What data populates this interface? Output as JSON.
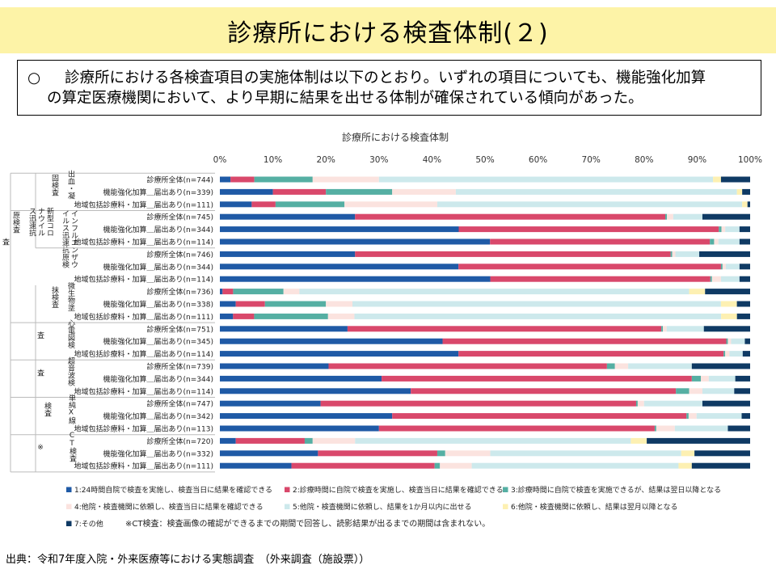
{
  "header": {
    "title": "診療所における検査体制(２)"
  },
  "summary": {
    "bullet": "○",
    "line1": "診療所における各検査項目の実施体制は以下のとおり。いずれの項目についても、機能強化加算",
    "line2": "の算定医療機関において、より早期に結果を出せる体制が確保されている傾向があった。"
  },
  "source": "出典：令和7年度入院・外来医療等における実態調査　（外来調査（施設票））",
  "chart_data": {
    "type": "bar",
    "orientation": "horizontal",
    "stacked": true,
    "title": "診療所における検査体制",
    "xlim": [
      0,
      100
    ],
    "x_ticks": [
      "0%",
      "10%",
      "20%",
      "30%",
      "40%",
      "50%",
      "60%",
      "70%",
      "80%",
      "90%",
      "100%"
    ],
    "grid": false,
    "legend_position": "bottom",
    "note": "※CT検査：検査画像の確認ができるまでの期間で回答し、読影結果が出るまでの期間は含まれない。",
    "groups": [
      {
        "label": "出血・凝固検査",
        "start": 0,
        "count": 3
      },
      {
        "label": "インフルエンザウイルス迅速抗原検査",
        "start": 3,
        "count": 6
      },
      {
        "label": "新型コロナウイルス迅速抗原検査",
        "start": 3,
        "count": 3
      },
      {
        "label": "微生物塗抹検査",
        "start": 9,
        "count": 3
      },
      {
        "label": "心電図検査",
        "start": 12,
        "count": 3
      },
      {
        "label": "超音波検査",
        "start": 15,
        "count": 3
      },
      {
        "label": "単純X線検査",
        "start": 18,
        "count": 3
      },
      {
        "label": "CT検査※",
        "start": 21,
        "count": 3
      }
    ],
    "categories": [
      "診療所全体(n=744)",
      "機能強化加算＿届出あり(n=339)",
      "地域包括診療料・加算＿届出あり(n=111)",
      "診療所全体(n=745)",
      "機能強化加算＿届出あり(n=344)",
      "地域包括診療料・加算＿届出あり(n=114)",
      "診療所全体(n=746)",
      "機能強化加算＿届出あり(n=344)",
      "地域包括診療料・加算＿届出あり(n=114)",
      "診療所全体(n=736)",
      "機能強化加算＿届出あり(n=338)",
      "地域包括診療料・加算＿届出あり(n=111)",
      "診療所全体(n=751)",
      "機能強化加算＿届出あり(n=345)",
      "地域包括診療料・加算＿届出あり(n=114)",
      "診療所全体(n=739)",
      "機能強化加算＿届出あり(n=344)",
      "地域包括診療料・加算＿届出あり(n=114)",
      "診療所全体(n=747)",
      "機能強化加算＿届出あり(n=342)",
      "地域包括診療料・加算＿届出あり(n=113)",
      "診療所全体(n=720)",
      "機能強化加算＿届出あり(n=332)",
      "地域包括診療料・加算＿届出あり(n=111)"
    ],
    "series": [
      {
        "name": "1:24時間自院で検査を実施し、検査当日に結果を確認できる",
        "color": "#1f5aa6",
        "values": [
          2,
          10,
          6,
          25.5,
          45,
          51,
          25.5,
          45,
          51,
          0.5,
          3,
          2.5,
          24,
          42,
          45,
          20.5,
          30.5,
          36,
          19,
          32.5,
          30,
          3,
          18.5,
          13.5
        ]
      },
      {
        "name": "2:診療時間に自院で検査を実施し、検査当日に結果を確認できる",
        "color": "#d9486b",
        "values": [
          4.5,
          10,
          4.5,
          58.5,
          49,
          41.5,
          59.5,
          49.5,
          41.5,
          2,
          5.5,
          4,
          59,
          53.5,
          50,
          52.5,
          58.5,
          50,
          59.5,
          55.5,
          52,
          13,
          22.5,
          27
        ]
      },
      {
        "name": "3:診療時間に自院で検査を実施できるが、結果は翌日以降となる",
        "color": "#55afa3",
        "values": [
          11,
          12.5,
          13,
          0.3,
          0.5,
          0.8,
          0.3,
          0.3,
          0.3,
          9.5,
          11.5,
          14,
          0.3,
          0.3,
          0.3,
          1.5,
          1.7,
          2.5,
          0.3,
          0.4,
          0.3,
          1.5,
          1.5,
          1
        ]
      },
      {
        "name": "4:他院・検査機関に依頼し、検査当日に結果を確認できる",
        "color": "#fbe3df",
        "values": [
          12.5,
          12,
          17.5,
          1.2,
          0.7,
          0.8,
          0.6,
          0.6,
          1.7,
          3,
          5,
          5,
          0.7,
          0.6,
          0.8,
          2.5,
          1.5,
          2.5,
          1.2,
          1.5,
          3.5,
          8,
          8.5,
          6
        ]
      },
      {
        "name": "5:他院・検査機関に依頼し、結果を1か月以内に出せる",
        "color": "#cde9ec",
        "values": [
          63,
          53,
          57.5,
          5.5,
          2.7,
          4,
          4.5,
          2.6,
          3.5,
          73.5,
          69.5,
          69.5,
          7,
          2.6,
          2.5,
          12,
          5,
          6,
          11,
          8.5,
          10,
          52,
          36,
          39
        ]
      },
      {
        "name": "6:他院・検査機関に依頼し、結果は翌月以降となる",
        "color": "#fdf0b2",
        "values": [
          1.5,
          1,
          1,
          0,
          0,
          0,
          0,
          0,
          0,
          3,
          3,
          3,
          0,
          0,
          0,
          0,
          0,
          0,
          0,
          0,
          0,
          3,
          2.5,
          2.5
        ]
      },
      {
        "name": "7:その他",
        "color": "#0f3a64",
        "values": [
          5.5,
          1.5,
          0.5,
          9,
          2,
          2,
          9.6,
          2,
          2,
          8.5,
          2.5,
          2.5,
          8.7,
          1,
          1.4,
          11,
          2.8,
          3,
          9,
          1.6,
          4.2,
          19.5,
          10.5,
          11
        ]
      }
    ]
  }
}
